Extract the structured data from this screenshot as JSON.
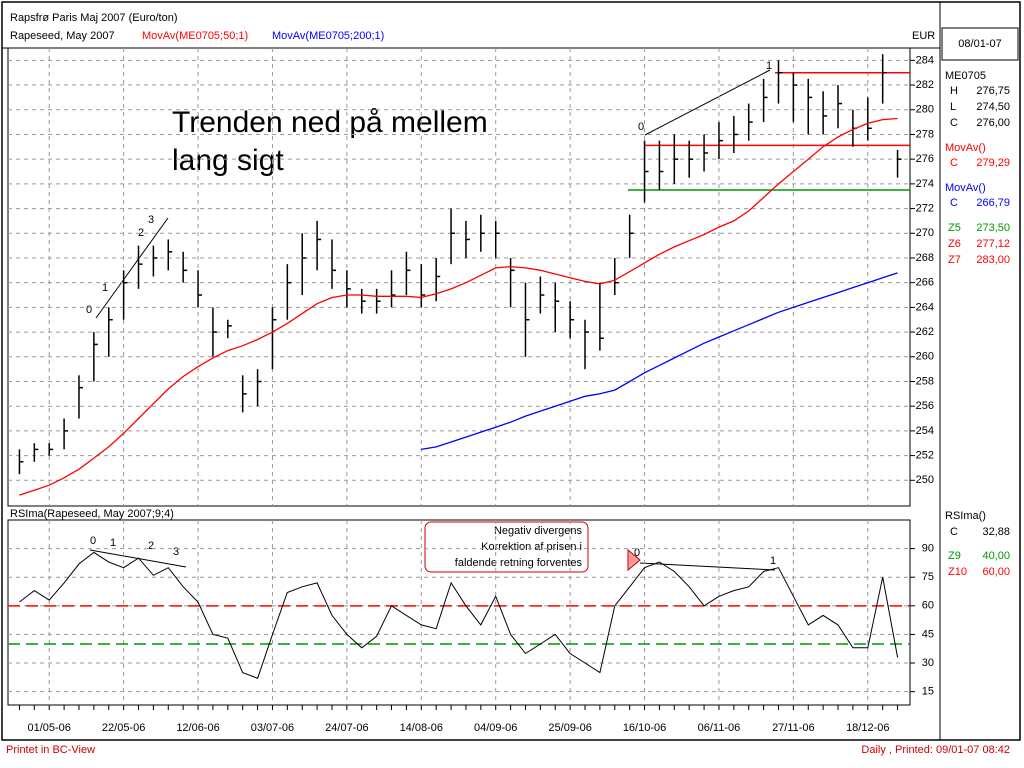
{
  "chart_data": [
    {
      "type": "ohlc",
      "title": "Rapsfrø Paris Maj 2007 (Euro/ton)",
      "subtitle": "Rapeseed, May 2007",
      "unit": "EUR",
      "date": "08/01-07",
      "categories": [
        null,
        null,
        "01/05-06",
        null,
        null,
        null,
        null,
        "22/05-06",
        null,
        null,
        null,
        null,
        "12/06-06",
        null,
        null,
        null,
        null,
        "03/07-06",
        null,
        null,
        null,
        null,
        "24/07-06",
        null,
        null,
        null,
        null,
        "14/08-06",
        null,
        null,
        null,
        null,
        "04/09-06",
        null,
        null,
        null,
        null,
        "25/09-06",
        null,
        null,
        null,
        null,
        "16/10-06",
        null,
        null,
        null,
        null,
        "06/11-06",
        null,
        null,
        null,
        null,
        "27/11-06",
        null,
        null,
        null,
        null,
        "18/12-06",
        null,
        null
      ],
      "series": [
        {
          "name": "ME0705",
          "color": "#000000",
          "high": [
            252.5,
            253,
            253,
            255,
            258.5,
            262,
            264,
            267,
            269,
            269,
            269.5,
            268.5,
            267,
            264,
            263,
            258.5,
            259,
            264,
            267.5,
            270,
            271,
            269.5,
            267,
            265.5,
            265.5,
            267,
            268.5,
            267.5,
            268,
            272,
            271,
            271.5,
            271,
            268,
            266,
            266.5,
            266,
            264.5,
            263,
            266,
            268,
            271.5,
            277.5,
            277.5,
            278,
            277.5,
            278,
            279,
            279.5,
            280.5,
            282.5,
            284,
            283,
            282.5,
            281.5,
            282,
            280,
            281,
            284.5,
            276.75
          ],
          "low": [
            250.5,
            251.5,
            252,
            252.5,
            255,
            258,
            260,
            263,
            265.5,
            266.5,
            267,
            266,
            264,
            260,
            261.5,
            255.5,
            256,
            259,
            263,
            265,
            267,
            265.5,
            264,
            263.5,
            263.5,
            264,
            265,
            264,
            264.5,
            267.5,
            268,
            268.5,
            268,
            264,
            260,
            263.5,
            262,
            261.5,
            259,
            260.5,
            265,
            268,
            272.5,
            273.5,
            274,
            274.5,
            275,
            276,
            276.5,
            277.5,
            279,
            280.5,
            279,
            278,
            278,
            278.5,
            277,
            277.5,
            280.5,
            274.5
          ],
          "close": [
            251.5,
            252.5,
            252.5,
            254,
            257.5,
            261,
            263,
            266,
            267.5,
            268,
            268.5,
            267,
            265,
            262,
            262.5,
            257,
            258,
            263,
            266,
            268,
            269.5,
            267,
            265.5,
            264.5,
            264.5,
            265,
            267,
            265,
            266.5,
            270,
            269.5,
            270,
            270,
            267,
            263,
            265,
            264.5,
            263,
            262,
            261.5,
            266,
            270,
            275,
            275,
            276,
            276,
            276.5,
            277.5,
            278,
            279,
            281,
            283,
            282,
            281,
            279.5,
            280.5,
            278.5,
            278.5,
            283,
            276
          ],
          "readout": [
            {
              "label": "H",
              "value": "276,75"
            },
            {
              "label": "L",
              "value": "274,50"
            },
            {
              "label": "C",
              "value": "276,00"
            }
          ]
        },
        {
          "name": "MovAv(ME0705;50;1)",
          "color": "#ff0000",
          "values": [
            248.8,
            249.2,
            249.6,
            250.2,
            250.9,
            251.8,
            252.7,
            253.8,
            255.0,
            256.2,
            257.4,
            258.4,
            259.2,
            259.9,
            260.5,
            260.9,
            261.4,
            262.0,
            262.7,
            263.5,
            264.3,
            264.8,
            265.0,
            265.0,
            264.9,
            264.9,
            264.9,
            264.8,
            265.1,
            265.5,
            266.0,
            266.6,
            267.2,
            267.3,
            267.2,
            267.0,
            266.7,
            266.4,
            266.1,
            265.9,
            266.2,
            266.9,
            267.6,
            268.3,
            268.9,
            269.4,
            269.9,
            270.5,
            271.0,
            271.8,
            272.9,
            274.0,
            275.0,
            276.0,
            277.0,
            277.8,
            278.4,
            278.9,
            279.2,
            279.29
          ],
          "readout": {
            "title": "MovAv()",
            "label": "C",
            "value": "279,29"
          }
        },
        {
          "name": "MovAv(ME0705;200;1)",
          "color": "#0000ff",
          "values": [
            null,
            null,
            null,
            null,
            null,
            null,
            null,
            null,
            null,
            null,
            null,
            null,
            null,
            null,
            null,
            null,
            null,
            null,
            null,
            null,
            null,
            null,
            null,
            null,
            null,
            null,
            null,
            252.5,
            252.7,
            253.1,
            253.5,
            253.9,
            254.3,
            254.7,
            255.2,
            255.6,
            256.0,
            256.4,
            256.8,
            257.0,
            257.3,
            258.0,
            258.7,
            259.3,
            259.9,
            260.5,
            261.1,
            261.6,
            262.1,
            262.6,
            263.1,
            263.6,
            264.0,
            264.4,
            264.8,
            265.2,
            265.6,
            266.0,
            266.4,
            266.79
          ],
          "readout": {
            "title": "MovAv()",
            "label": "C",
            "value": "266,79"
          }
        }
      ],
      "levels": [
        {
          "name": "Z5",
          "value": 273.5,
          "label": "273,50",
          "color": "#009900"
        },
        {
          "name": "Z6",
          "value": 277.12,
          "label": "277,12",
          "color": "#ff0000"
        },
        {
          "name": "Z7",
          "value": 283,
          "label": "283,00",
          "color": "#ff0000"
        }
      ],
      "ylim": [
        248,
        285
      ],
      "yticks": [
        250,
        252,
        254,
        256,
        258,
        260,
        262,
        264,
        266,
        268,
        270,
        272,
        274,
        276,
        278,
        280,
        282,
        284
      ],
      "grid": true,
      "annotations": [
        "Trenden ned på mellem",
        "lang sigt",
        "0",
        "1",
        "2",
        "3",
        "0",
        "1"
      ]
    },
    {
      "type": "line",
      "title": "RSIma(Rapeseed, May 2007;9;4)",
      "series": [
        {
          "name": "RSIma()",
          "color": "#000000",
          "values": [
            62,
            68,
            63,
            72,
            82,
            88,
            83,
            80,
            85,
            76,
            80,
            70,
            62,
            45,
            43,
            25,
            22,
            45,
            67,
            70,
            72,
            55,
            45,
            38,
            44,
            60,
            55,
            50,
            48,
            72,
            60,
            50,
            65,
            45,
            35,
            40,
            45,
            35,
            30,
            25,
            60,
            70,
            80,
            83,
            78,
            70,
            60,
            65,
            68,
            70,
            78,
            80,
            65,
            50,
            55,
            50,
            38,
            38,
            75,
            32.88
          ],
          "readout": {
            "label": "C",
            "value": "32,88"
          }
        }
      ],
      "levels": [
        {
          "name": "Z9",
          "value": 40,
          "label": "40,00",
          "color": "#009900"
        },
        {
          "name": "Z10",
          "value": 60,
          "label": "60,00",
          "color": "#ff0000"
        }
      ],
      "ylim": [
        8,
        105
      ],
      "yticks": [
        15,
        30,
        45,
        60,
        75,
        90
      ],
      "grid": true,
      "annotations": [
        "0",
        "1",
        "2",
        "3",
        "Negativ divergens",
        "Korrektion af prisen i",
        "faldende retning forventes",
        "0",
        "1"
      ]
    }
  ],
  "footer": {
    "left": "Printet in BC-View",
    "right": "Daily , Printed: 09/01-07 08:42"
  }
}
